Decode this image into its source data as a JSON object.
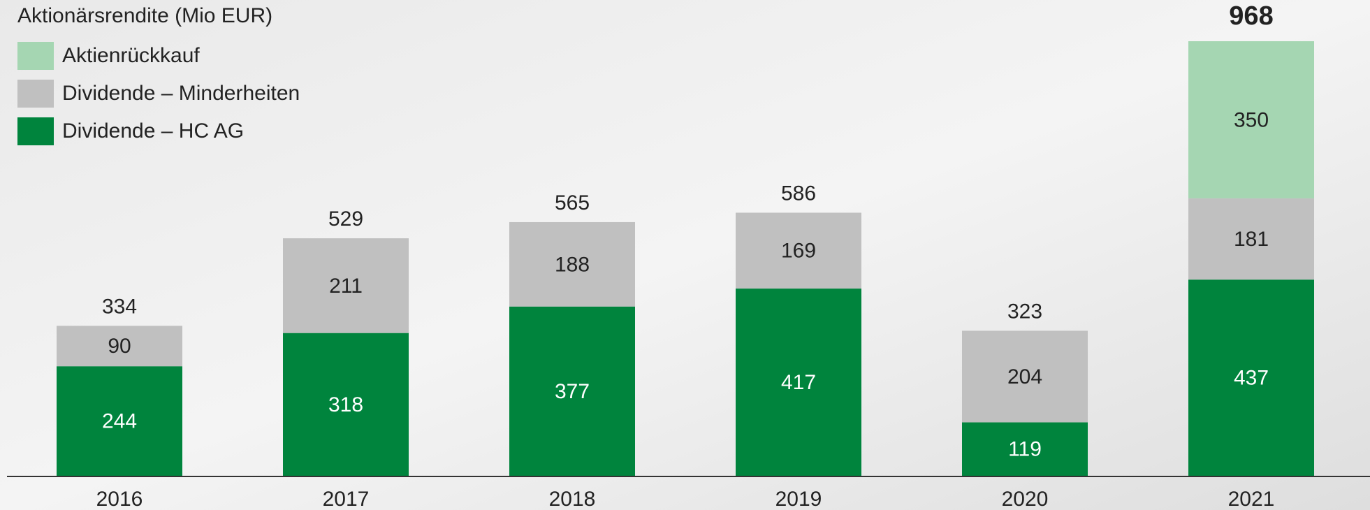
{
  "chart_data": {
    "type": "stacked_bar",
    "title": "Aktionärsrendite (Mio EUR)",
    "categories": [
      "2016",
      "2017",
      "2018",
      "2019",
      "2020",
      "2021"
    ],
    "series": [
      {
        "name": "Dividende – HC AG",
        "color": "#00843d",
        "label_color": "#ffffff",
        "values": [
          244,
          318,
          377,
          417,
          119,
          437
        ]
      },
      {
        "name": "Dividende – Minderheiten",
        "color": "#c0c0c0",
        "label_color": "#222222",
        "values": [
          90,
          211,
          188,
          169,
          204,
          181
        ]
      },
      {
        "name": "Aktienrückkauf",
        "color": "#a5d6b2",
        "label_color": "#222222",
        "values": [
          null,
          null,
          null,
          null,
          null,
          350
        ]
      }
    ],
    "totals": [
      334,
      529,
      565,
      586,
      323,
      968
    ]
  }
}
